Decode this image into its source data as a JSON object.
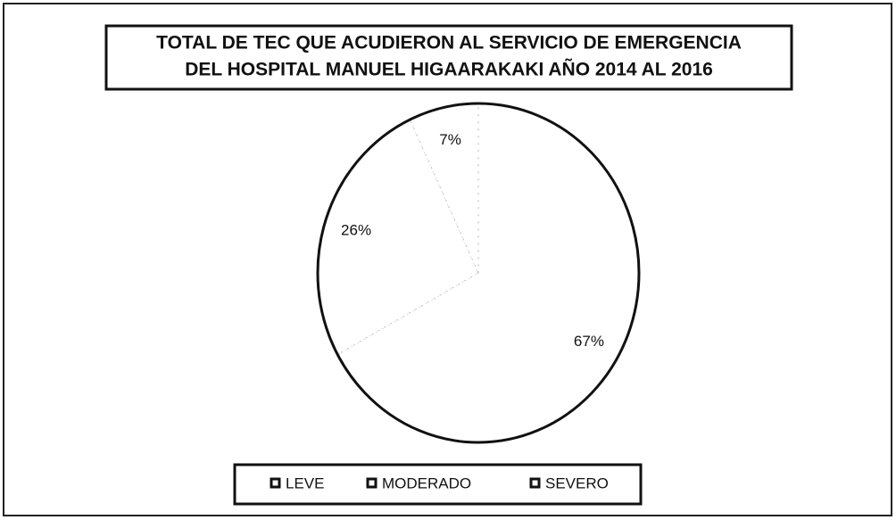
{
  "chart_data": {
    "type": "pie",
    "title": [
      "TOTAL DE TEC QUE ACUDIERON AL SERVICIO DE EMERGENCIA",
      "DEL HOSPITAL MANUEL HIGAARAKAKI AÑO 2014 AL 2016"
    ],
    "categories": [
      "LEVE",
      "MODERADO",
      "SEVERO"
    ],
    "values": [
      67,
      26,
      7
    ],
    "value_labels": [
      "67%",
      "26%",
      "7%"
    ],
    "colors": [
      "#ffffff",
      "#ffffff",
      "#ffffff"
    ]
  }
}
